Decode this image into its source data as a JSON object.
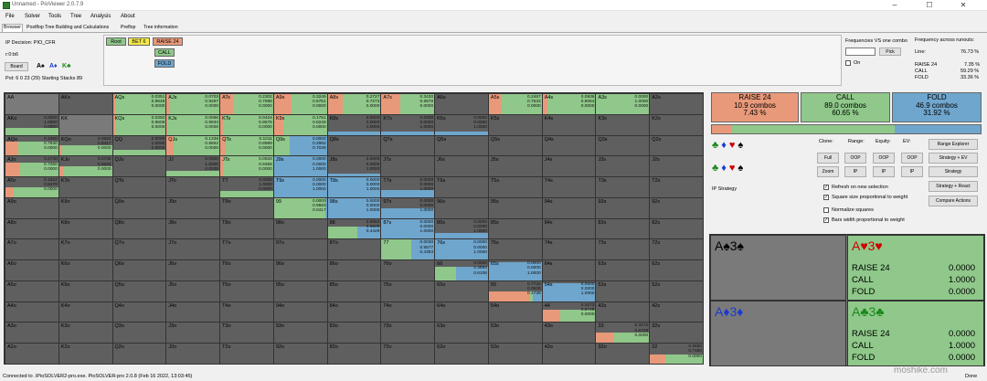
{
  "window": {
    "title": "Unnamed - PioViewer 2.0.7.9",
    "min": "–",
    "max": "☐",
    "close": "✕"
  },
  "menu": [
    "File",
    "Solver",
    "Tools",
    "Tree",
    "Analysis",
    "About"
  ],
  "tabs": [
    "Browser",
    "Postflop Tree Building and Calculations",
    "Preflop",
    "Tree information"
  ],
  "left_info": {
    "decision": "IP Decision:  PIO_CFR",
    "rdb": "r:0:b6",
    "board_btn": "Board",
    "board_cards": [
      "A♠",
      "A♦",
      "K♣"
    ],
    "pot": "Pot: 6 0 23 (29) Starting Stacks 89"
  },
  "tree_nav": {
    "root": "Root",
    "bet": "BET 6",
    "raise": "RAISE 24",
    "call": "CALL",
    "fold": "FOLD"
  },
  "freq_panel": {
    "title": "Frequencies VS one combo",
    "pick": "Pick",
    "on": "On",
    "runouts_title": "Frequency across runouts:",
    "line_label": "Line:",
    "line_value": "76.73 %",
    "rows": [
      {
        "label": "RAISE 24",
        "value": "7.35 %"
      },
      {
        "label": "CALL",
        "value": "59.29 %"
      },
      {
        "label": "FOLD",
        "value": "33.36 %"
      }
    ]
  },
  "actions": [
    {
      "name": "RAISE 24",
      "combos": "10.9 combos",
      "pct": "7.43 %",
      "color": "#e8997a"
    },
    {
      "name": "CALL",
      "combos": "89.0 combos",
      "pct": "60.65 %",
      "color": "#8fc88a"
    },
    {
      "name": "FOLD",
      "combos": "46.9 combos",
      "pct": "31.92 %",
      "color": "#6fa6cd"
    }
  ],
  "controls": {
    "clone": "Clone:",
    "range": "Range:",
    "equity": "Equity:",
    "ev": "EV:",
    "full": "Full",
    "zoom": "Zoom",
    "oop": "OOP",
    "ip": "IP",
    "range_explorer": "Range Explorer",
    "strategy_ev": "Strategy + EV",
    "strategy": "Strategy",
    "strategy_react": "Strategy + React",
    "compare": "Compare Actions",
    "ip_strategy": "IP Strategy",
    "checks": [
      "Refresh on new selection",
      "Square size proportional to weight",
      "Normalize squares",
      "Bars width proportional to weight"
    ]
  },
  "hands": [
    {
      "cards": "A♠3♠",
      "color": "#000",
      "lines": []
    },
    {
      "cards": "A♥3♥",
      "color": "#c00",
      "lines": [
        {
          "label": "RAISE 24",
          "value": "0.0000"
        },
        {
          "label": "CALL",
          "value": "1.0000"
        },
        {
          "label": "FOLD",
          "value": "0.0000"
        }
      ]
    },
    {
      "cards": "A♦3♦",
      "color": "#1a3ad0",
      "lines": []
    },
    {
      "cards": "A♣3♣",
      "color": "#1a8a1a",
      "lines": [
        {
          "label": "RAISE 24",
          "value": "0.0000"
        },
        {
          "label": "CALL",
          "value": "1.0000"
        },
        {
          "label": "FOLD",
          "value": "0.0000"
        }
      ]
    }
  ],
  "suit_rows": [
    [
      "♣",
      "♦",
      "♥",
      "♠"
    ],
    [
      "♣",
      "♦",
      "♥",
      "♠"
    ]
  ],
  "status": "Connected to .\\PioSOLVER2-pro.exe. PioSOLVER-pro 2.0.8 (Feb 16 2022, 13:03:45)",
  "status_right": "Done",
  "watermark": "moshike.com",
  "grid_labels": [
    [
      "AA",
      "AKs",
      "AQs",
      "AJs",
      "ATs",
      "A9s",
      "A8s",
      "A7s",
      "A6s",
      "A5s",
      "A4s",
      "A3s",
      "A2s"
    ],
    [
      "AKo",
      "KK",
      "KQs",
      "KJs",
      "KTs",
      "K9s",
      "K8s",
      "K7s",
      "K6s",
      "K5s",
      "K4s",
      "K3s",
      "K2s"
    ],
    [
      "AQo",
      "KQo",
      "QQ",
      "QJs",
      "QTs",
      "Q9s",
      "Q8s",
      "Q7s",
      "Q6s",
      "Q5s",
      "Q4s",
      "Q3s",
      "Q2s"
    ],
    [
      "AJo",
      "KJo",
      "QJo",
      "JJ",
      "JTs",
      "J9s",
      "J8s",
      "J7s",
      "J6s",
      "J5s",
      "J4s",
      "J3s",
      "J2s"
    ],
    [
      "ATo",
      "KTo",
      "QTo",
      "JTo",
      "TT",
      "T9s",
      "T8s",
      "T7s",
      "T6s",
      "T5s",
      "T4s",
      "T3s",
      "T2s"
    ],
    [
      "A9o",
      "K9o",
      "Q9o",
      "J9o",
      "T9o",
      "99",
      "98s",
      "97s",
      "96s",
      "95s",
      "94s",
      "93s",
      "92s"
    ],
    [
      "A8o",
      "K8o",
      "Q8o",
      "J8o",
      "T8o",
      "98o",
      "88",
      "87s",
      "86s",
      "85s",
      "84s",
      "83s",
      "82s"
    ],
    [
      "A7o",
      "K7o",
      "Q7o",
      "J7o",
      "T7o",
      "97o",
      "87o",
      "77",
      "76s",
      "75s",
      "74s",
      "73s",
      "72s"
    ],
    [
      "A6o",
      "K6o",
      "Q6o",
      "J6o",
      "T6o",
      "96o",
      "86o",
      "76o",
      "66",
      "65s",
      "64s",
      "63s",
      "62s"
    ],
    [
      "A5o",
      "K5o",
      "Q5o",
      "J5o",
      "T5o",
      "95o",
      "85o",
      "75o",
      "65o",
      "55",
      "54s",
      "53s",
      "52s"
    ],
    [
      "A4o",
      "K4o",
      "Q4o",
      "J4o",
      "T4o",
      "94o",
      "84o",
      "74o",
      "64o",
      "54o",
      "44",
      "43s",
      "42s"
    ],
    [
      "A3o",
      "K3o",
      "Q3o",
      "J3o",
      "T3o",
      "93o",
      "83o",
      "73o",
      "63o",
      "53o",
      "43o",
      "33",
      "32s"
    ],
    [
      "A2o",
      "K2o",
      "Q2o",
      "J2o",
      "T2o",
      "92o",
      "82o",
      "72o",
      "62o",
      "52o",
      "42o",
      "32o",
      "22"
    ]
  ],
  "cells": {
    "0,2": {
      "v": [
        "0.0351",
        "0.9649",
        "0.0000"
      ],
      "f": [
        0.0351,
        0.9649,
        0
      ],
      "h": 1
    },
    "0,3": {
      "v": [
        "0.0703",
        "0.9297",
        "0.0000"
      ],
      "f": [
        0.0703,
        0.9297,
        0
      ],
      "h": 1
    },
    "0,4": {
      "v": [
        "0.2302",
        "0.7698",
        "0.0000"
      ],
      "f": [
        0.2302,
        0.7698,
        0
      ],
      "h": 1
    },
    "0,5": {
      "v": [
        "0.3249",
        "0.6751",
        "0.0000"
      ],
      "f": [
        0.3249,
        0.6751,
        0
      ],
      "h": 1
    },
    "0,6": {
      "v": [
        "0.2727",
        "0.7273",
        "0.0000"
      ],
      "f": [
        0.2727,
        0.7273,
        0
      ],
      "h": 1
    },
    "0,7": {
      "v": [
        "0.3430",
        "0.6570",
        "0.0000"
      ],
      "f": [
        0.343,
        0.657,
        0
      ],
      "h": 1
    },
    "0,9": {
      "v": [
        "0.2467",
        "0.7533",
        "0.0000"
      ],
      "f": [
        0.2467,
        0.7533,
        0
      ],
      "h": 1
    },
    "0,10": {
      "v": [
        "0.0936",
        "0.9064",
        "0.0000"
      ],
      "f": [
        0.0936,
        0.9064,
        0
      ],
      "h": 1
    },
    "0,11": {
      "v": [
        "0.0000",
        "1.0000",
        "0.0000"
      ],
      "f": [
        0,
        1,
        0
      ],
      "h": 1
    },
    "1,0": {
      "v": [
        "0.0000",
        "1.0000",
        "0.0000"
      ],
      "f": [
        0,
        1,
        0
      ],
      "h": 0.35
    },
    "1,2": {
      "v": [
        "0.0392",
        "0.9608",
        "0.0000"
      ],
      "f": [
        0.0392,
        0.9608,
        0
      ],
      "h": 1
    },
    "1,3": {
      "v": [
        "0.0066",
        "0.9934",
        "0.0000"
      ],
      "f": [
        0.0066,
        0.9934,
        0
      ],
      "h": 1
    },
    "1,4": {
      "v": [
        "0.0424",
        "0.9576",
        "0.0000"
      ],
      "f": [
        0.0424,
        0.9576,
        0
      ],
      "h": 1
    },
    "1,5": {
      "v": [
        "0.1751",
        "0.8249",
        "0.0000"
      ],
      "f": [
        0.1751,
        0.8249,
        0
      ],
      "h": 1
    },
    "1,6": {
      "v": [
        "0.0000",
        "0.0000",
        "1.0000"
      ],
      "f": [
        0,
        0,
        1
      ],
      "h": 0.15
    },
    "1,7": {
      "v": [
        "0.0000",
        "0.0000",
        "1.0000"
      ],
      "f": [
        0,
        0,
        1
      ],
      "h": 0.15
    },
    "1,8": {
      "v": [
        "0.0000",
        "0.0000",
        "1.0000"
      ],
      "f": [
        0,
        0,
        1
      ],
      "h": 0.15
    },
    "2,0": {
      "v": [
        "0.2460",
        "0.7540",
        "0.0000"
      ],
      "f": [
        0.246,
        0.754,
        0
      ],
      "h": 0.7
    },
    "2,1": {
      "v": [
        "0.0583",
        "0.9417",
        "0.0000"
      ],
      "f": [
        0.0583,
        0.9417,
        0
      ],
      "h": 0.5
    },
    "2,2": {
      "v": [
        "0.0000",
        "1.0000",
        "0.0000"
      ],
      "f": [
        0,
        1,
        0
      ],
      "h": 0.3
    },
    "2,3": {
      "v": [
        "0.1338",
        "0.8662",
        "0.0000"
      ],
      "f": [
        0.1338,
        0.8662,
        0
      ],
      "h": 1
    },
    "2,4": {
      "v": [
        "0.1011",
        "0.8989",
        "0.0000"
      ],
      "f": [
        0.1011,
        0.8989,
        0
      ],
      "h": 1
    },
    "2,5": {
      "v": [
        "0.0000",
        "0.2962",
        "0.7038"
      ],
      "f": [
        0,
        0.2962,
        0.7038
      ],
      "h": 1
    },
    "3,0": {
      "v": [
        "0.2740",
        "0.7260",
        "0.0000"
      ],
      "f": [
        0.274,
        0.726,
        0
      ],
      "h": 0.7
    },
    "3,1": {
      "v": [
        "0.0736",
        "0.9264",
        "0.0000"
      ],
      "f": [
        0.0736,
        0.9264,
        0
      ],
      "h": 0.5
    },
    "3,3": {
      "v": [
        "0.0000",
        "1.0000",
        "0.0000"
      ],
      "f": [
        0,
        1,
        0
      ],
      "h": 0.3
    },
    "3,4": {
      "v": [
        "0.0634",
        "0.9366",
        "0.0000"
      ],
      "f": [
        0.0634,
        0.9366,
        0
      ],
      "h": 1
    },
    "3,5": {
      "v": [
        "0.0000",
        "0.0000",
        "1.0000"
      ],
      "f": [
        0,
        0,
        1
      ],
      "h": 1
    },
    "3,6": {
      "v": [
        "0.0000",
        "0.0000",
        "1.0000"
      ],
      "f": [
        0,
        0,
        1
      ],
      "h": 0.15
    },
    "4,0": {
      "v": [
        "0.1522",
        "0.8478",
        "0.0000"
      ],
      "f": [
        0.1522,
        0.8478,
        0
      ],
      "h": 0.5
    },
    "4,4": {
      "v": [
        "0.0000",
        "1.0000",
        "0.0000"
      ],
      "f": [
        0,
        1,
        0
      ],
      "h": 0.3
    },
    "4,5": {
      "v": [
        "0.0000",
        "0.0000",
        "1.0000"
      ],
      "f": [
        0,
        0,
        1
      ],
      "h": 1
    },
    "4,6": {
      "v": [
        "0.0000",
        "0.0000",
        "1.0000"
      ],
      "f": [
        0,
        0,
        1
      ],
      "h": 1
    },
    "4,7": {
      "v": [
        "0.0000",
        "0.0000",
        "1.0000"
      ],
      "f": [
        0,
        0,
        1
      ],
      "h": 0.35
    },
    "5,5": {
      "v": [
        "0.0000",
        "0.9583",
        "0.0417"
      ],
      "f": [
        0,
        0.9583,
        0.0417
      ],
      "h": 1
    },
    "5,6": {
      "v": [
        "0.0000",
        "0.0000",
        "1.0000"
      ],
      "f": [
        0,
        0,
        1
      ],
      "h": 1
    },
    "5,7": {
      "v": [
        "0.0000",
        "0.0000",
        "1.0000"
      ],
      "f": [
        0,
        0,
        1
      ],
      "h": 0.5
    },
    "6,6": {
      "v": [
        "0.0063",
        "0.5508",
        "0.4429"
      ],
      "f": [
        0.0063,
        0.5508,
        0.4429
      ],
      "h": 0.6
    },
    "6,7": {
      "v": [
        "0.0000",
        "0.0000",
        "1.0000"
      ],
      "f": [
        0,
        0,
        1
      ],
      "h": 1
    },
    "6,8": {
      "v": [
        "0.0000",
        "0.0000",
        "1.0000"
      ],
      "f": [
        0,
        0,
        1
      ],
      "h": 0.3
    },
    "7,7": {
      "v": [
        "0.0030",
        "0.5577",
        "0.4393"
      ],
      "f": [
        0.003,
        0.5577,
        0.4393
      ],
      "h": 1
    },
    "7,8": {
      "v": [
        "0.0000",
        "0.0000",
        "1.0000"
      ],
      "f": [
        0,
        0,
        1
      ],
      "h": 1
    },
    "8,8": {
      "v": [
        "0.0000",
        "0.3894",
        "0.6106"
      ],
      "f": [
        0,
        0.3894,
        0.6106
      ],
      "h": 0.7
    },
    "8,9": {
      "v": [
        "0.0000",
        "0.0000",
        "1.0000"
      ],
      "f": [
        0,
        0,
        1
      ],
      "h": 0.9
    },
    "9,9": {
      "v": [
        "0.7734",
        "0.0528",
        "0.1738"
      ],
      "f": [
        0.7734,
        0.0528,
        0.1738
      ],
      "h": 0.5
    },
    "9,10": {
      "v": [
        "0.0000",
        "0.0000",
        "1.0000"
      ],
      "f": [
        0,
        0,
        1
      ],
      "h": 0.9
    },
    "10,10": {
      "v": [
        "0.3272",
        "0.6728",
        "0.0000"
      ],
      "f": [
        0.3272,
        0.6728,
        0
      ],
      "h": 0.6
    },
    "11,11": {
      "v": [
        "0.3272",
        "0.6728",
        "0.0000"
      ],
      "f": [
        0.3272,
        0.6728,
        0
      ],
      "h": 0.5
    },
    "12,12": {
      "v": [
        "0.2820",
        "0.7180",
        "0.0000"
      ],
      "f": [
        0.282,
        0.718,
        0
      ],
      "h": 0.45
    }
  },
  "colors": {
    "raise": "#e8997a",
    "call": "#8fc88a",
    "fold": "#6fa6cd",
    "empty": "#5f5f5f"
  }
}
